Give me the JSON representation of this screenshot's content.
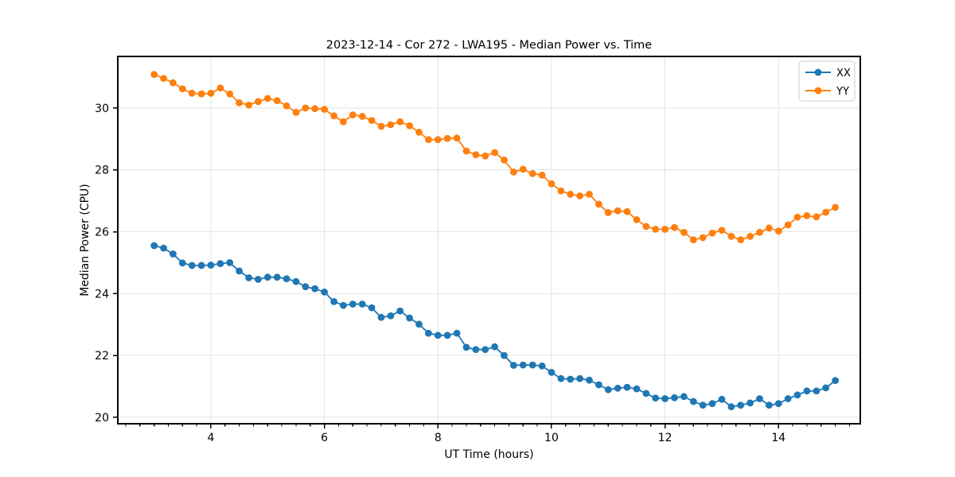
{
  "figure": {
    "title": "2023-12-14 - Cor 272 - LWA195 - Median Power vs. Time",
    "xlabel": "UT Time (hours)",
    "ylabel": "Median Power (CPU)"
  },
  "chart_data": {
    "type": "line",
    "title": "2023-12-14 - Cor 272 - LWA195 - Median Power vs. Time",
    "xlabel": "UT Time (hours)",
    "ylabel": "Median Power (CPU)",
    "legend_position": "upper right",
    "grid": true,
    "grid_color": "#e3e3e3",
    "background": "#ffffff",
    "xlim": [
      2.36,
      15.44
    ],
    "ylim": [
      19.79,
      31.67
    ],
    "x_major_ticks": [
      4,
      6,
      8,
      10,
      12,
      14
    ],
    "x_minor_tick_step": 0.25,
    "y_major_ticks": [
      20,
      22,
      24,
      26,
      28,
      30
    ],
    "x": [
      3.0,
      3.167,
      3.333,
      3.5,
      3.667,
      3.833,
      4.0,
      4.167,
      4.333,
      4.5,
      4.667,
      4.833,
      5.0,
      5.167,
      5.333,
      5.5,
      5.667,
      5.833,
      6.0,
      6.167,
      6.333,
      6.5,
      6.667,
      6.833,
      7.0,
      7.167,
      7.333,
      7.5,
      7.667,
      7.833,
      8.0,
      8.167,
      8.333,
      8.5,
      8.667,
      8.833,
      9.0,
      9.167,
      9.333,
      9.5,
      9.667,
      9.833,
      10.0,
      10.167,
      10.333,
      10.5,
      10.667,
      10.833,
      11.0,
      11.167,
      11.333,
      11.5,
      11.667,
      11.833,
      12.0,
      12.167,
      12.333,
      12.5,
      12.667,
      12.833,
      13.0,
      13.167,
      13.333,
      13.5,
      13.667,
      13.833,
      14.0,
      14.167,
      14.333,
      14.5,
      14.667,
      14.833,
      15.0
    ],
    "series": [
      {
        "name": "XX",
        "color": "#1f77b4",
        "values": [
          25.55,
          25.47,
          25.28,
          24.99,
          24.91,
          24.91,
          24.92,
          24.97,
          25.0,
          24.73,
          24.51,
          24.46,
          24.53,
          24.53,
          24.48,
          24.39,
          24.22,
          24.16,
          24.05,
          23.74,
          23.62,
          23.66,
          23.66,
          23.54,
          23.23,
          23.28,
          23.44,
          23.21,
          23.01,
          22.72,
          22.65,
          22.65,
          22.72,
          22.26,
          22.19,
          22.19,
          22.28,
          22.0,
          21.68,
          21.69,
          21.69,
          21.66,
          21.45,
          21.25,
          21.23,
          21.25,
          21.2,
          21.05,
          20.89,
          20.94,
          20.97,
          20.92,
          20.77,
          20.62,
          20.6,
          20.63,
          20.67,
          20.51,
          20.39,
          20.44,
          20.58,
          20.34,
          20.39,
          20.46,
          20.6,
          20.39,
          20.44,
          20.6,
          20.72,
          20.85,
          20.85,
          20.95,
          21.19
        ]
      },
      {
        "name": "YY",
        "color": "#ff7f0e",
        "values": [
          31.09,
          30.96,
          30.82,
          30.62,
          30.48,
          30.46,
          30.48,
          30.65,
          30.46,
          30.17,
          30.1,
          30.21,
          30.31,
          30.24,
          30.07,
          29.86,
          30.0,
          29.98,
          29.96,
          29.75,
          29.56,
          29.78,
          29.73,
          29.6,
          29.41,
          29.46,
          29.56,
          29.43,
          29.22,
          28.98,
          28.98,
          29.02,
          29.03,
          28.61,
          28.49,
          28.45,
          28.56,
          28.32,
          27.93,
          28.02,
          27.88,
          27.83,
          27.55,
          27.32,
          27.21,
          27.16,
          27.21,
          26.89,
          26.62,
          26.68,
          26.65,
          26.39,
          26.17,
          26.08,
          26.08,
          26.14,
          25.98,
          25.74,
          25.81,
          25.96,
          26.05,
          25.85,
          25.74,
          25.85,
          25.98,
          26.12,
          26.02,
          26.22,
          26.47,
          26.52,
          26.48,
          26.63,
          26.79
        ]
      }
    ]
  }
}
